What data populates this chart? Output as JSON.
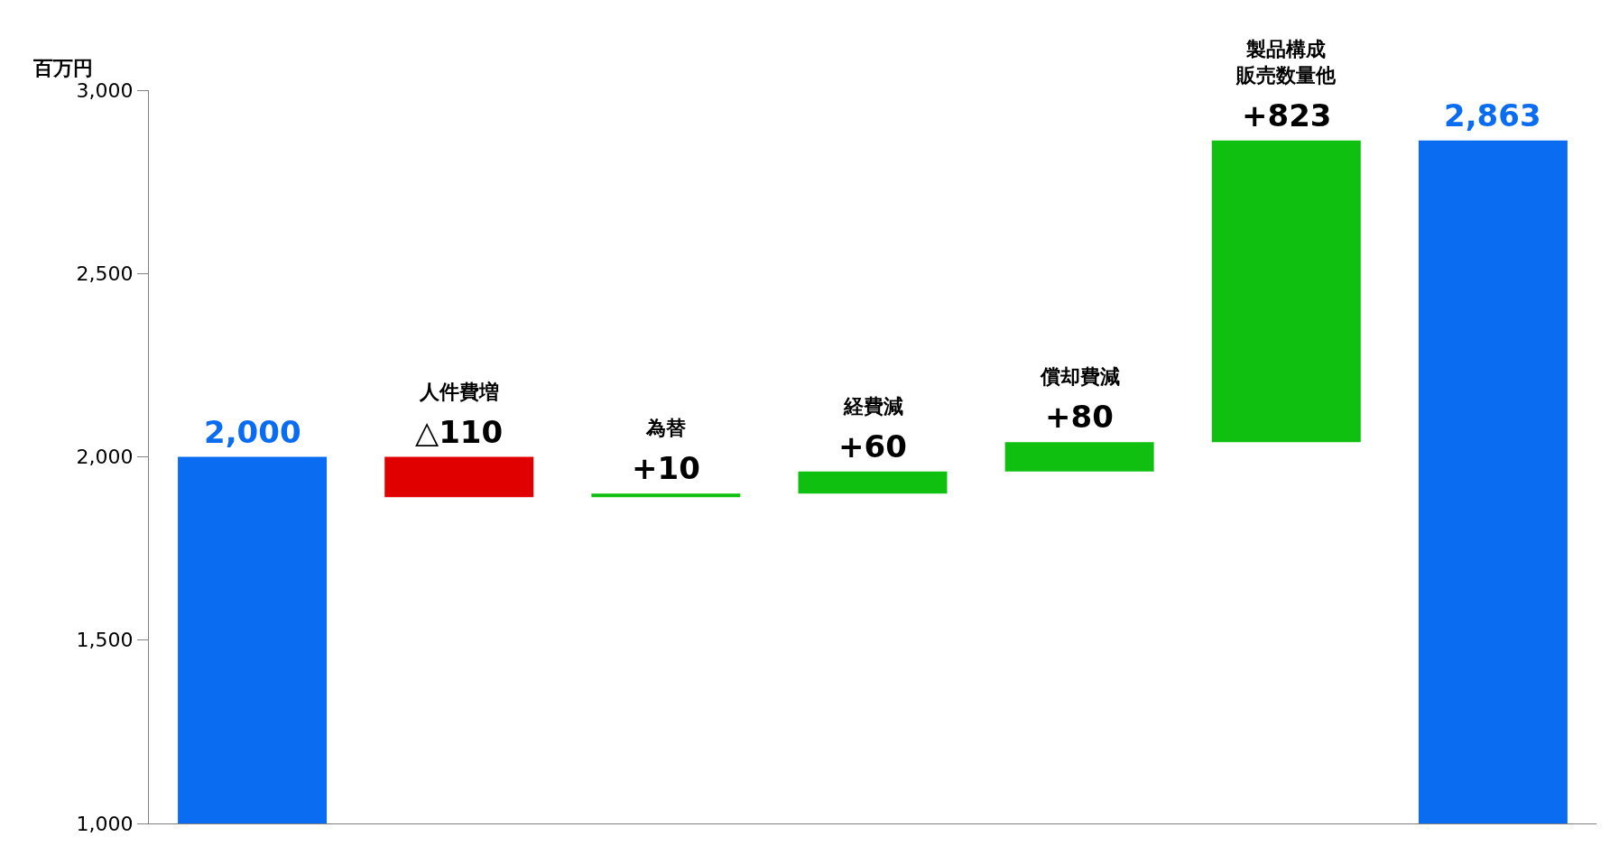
{
  "chart_data": {
    "type": "bar",
    "ylabel": "百万円",
    "categories": [
      null,
      "人件費増",
      "為替",
      "経費減",
      "償却費減",
      "製品構成販売数量他",
      null
    ],
    "values": [
      2000,
      -110,
      10,
      60,
      80,
      823,
      2863
    ],
    "base": [
      null,
      2000,
      1890,
      1900,
      1960,
      2040,
      null
    ],
    "value_labels": [
      "2,000",
      "△110",
      "+10",
      "+60",
      "+80",
      "+823",
      "2,863"
    ],
    "colors": [
      "#0a6cf0",
      "#e00000",
      "#10c010",
      "#10c010",
      "#10c010",
      "#10c010",
      "#0a6cf0"
    ],
    "ylim": [
      1000,
      3000
    ],
    "yticks": [
      {
        "value": 1000,
        "label": "1,000"
      },
      {
        "value": 1500,
        "label": "1,500"
      },
      {
        "value": 2000,
        "label": "2,000"
      },
      {
        "value": 2500,
        "label": "2,500"
      },
      {
        "value": 3000,
        "label": "3,000"
      }
    ],
    "tick_labels": "y"
  }
}
